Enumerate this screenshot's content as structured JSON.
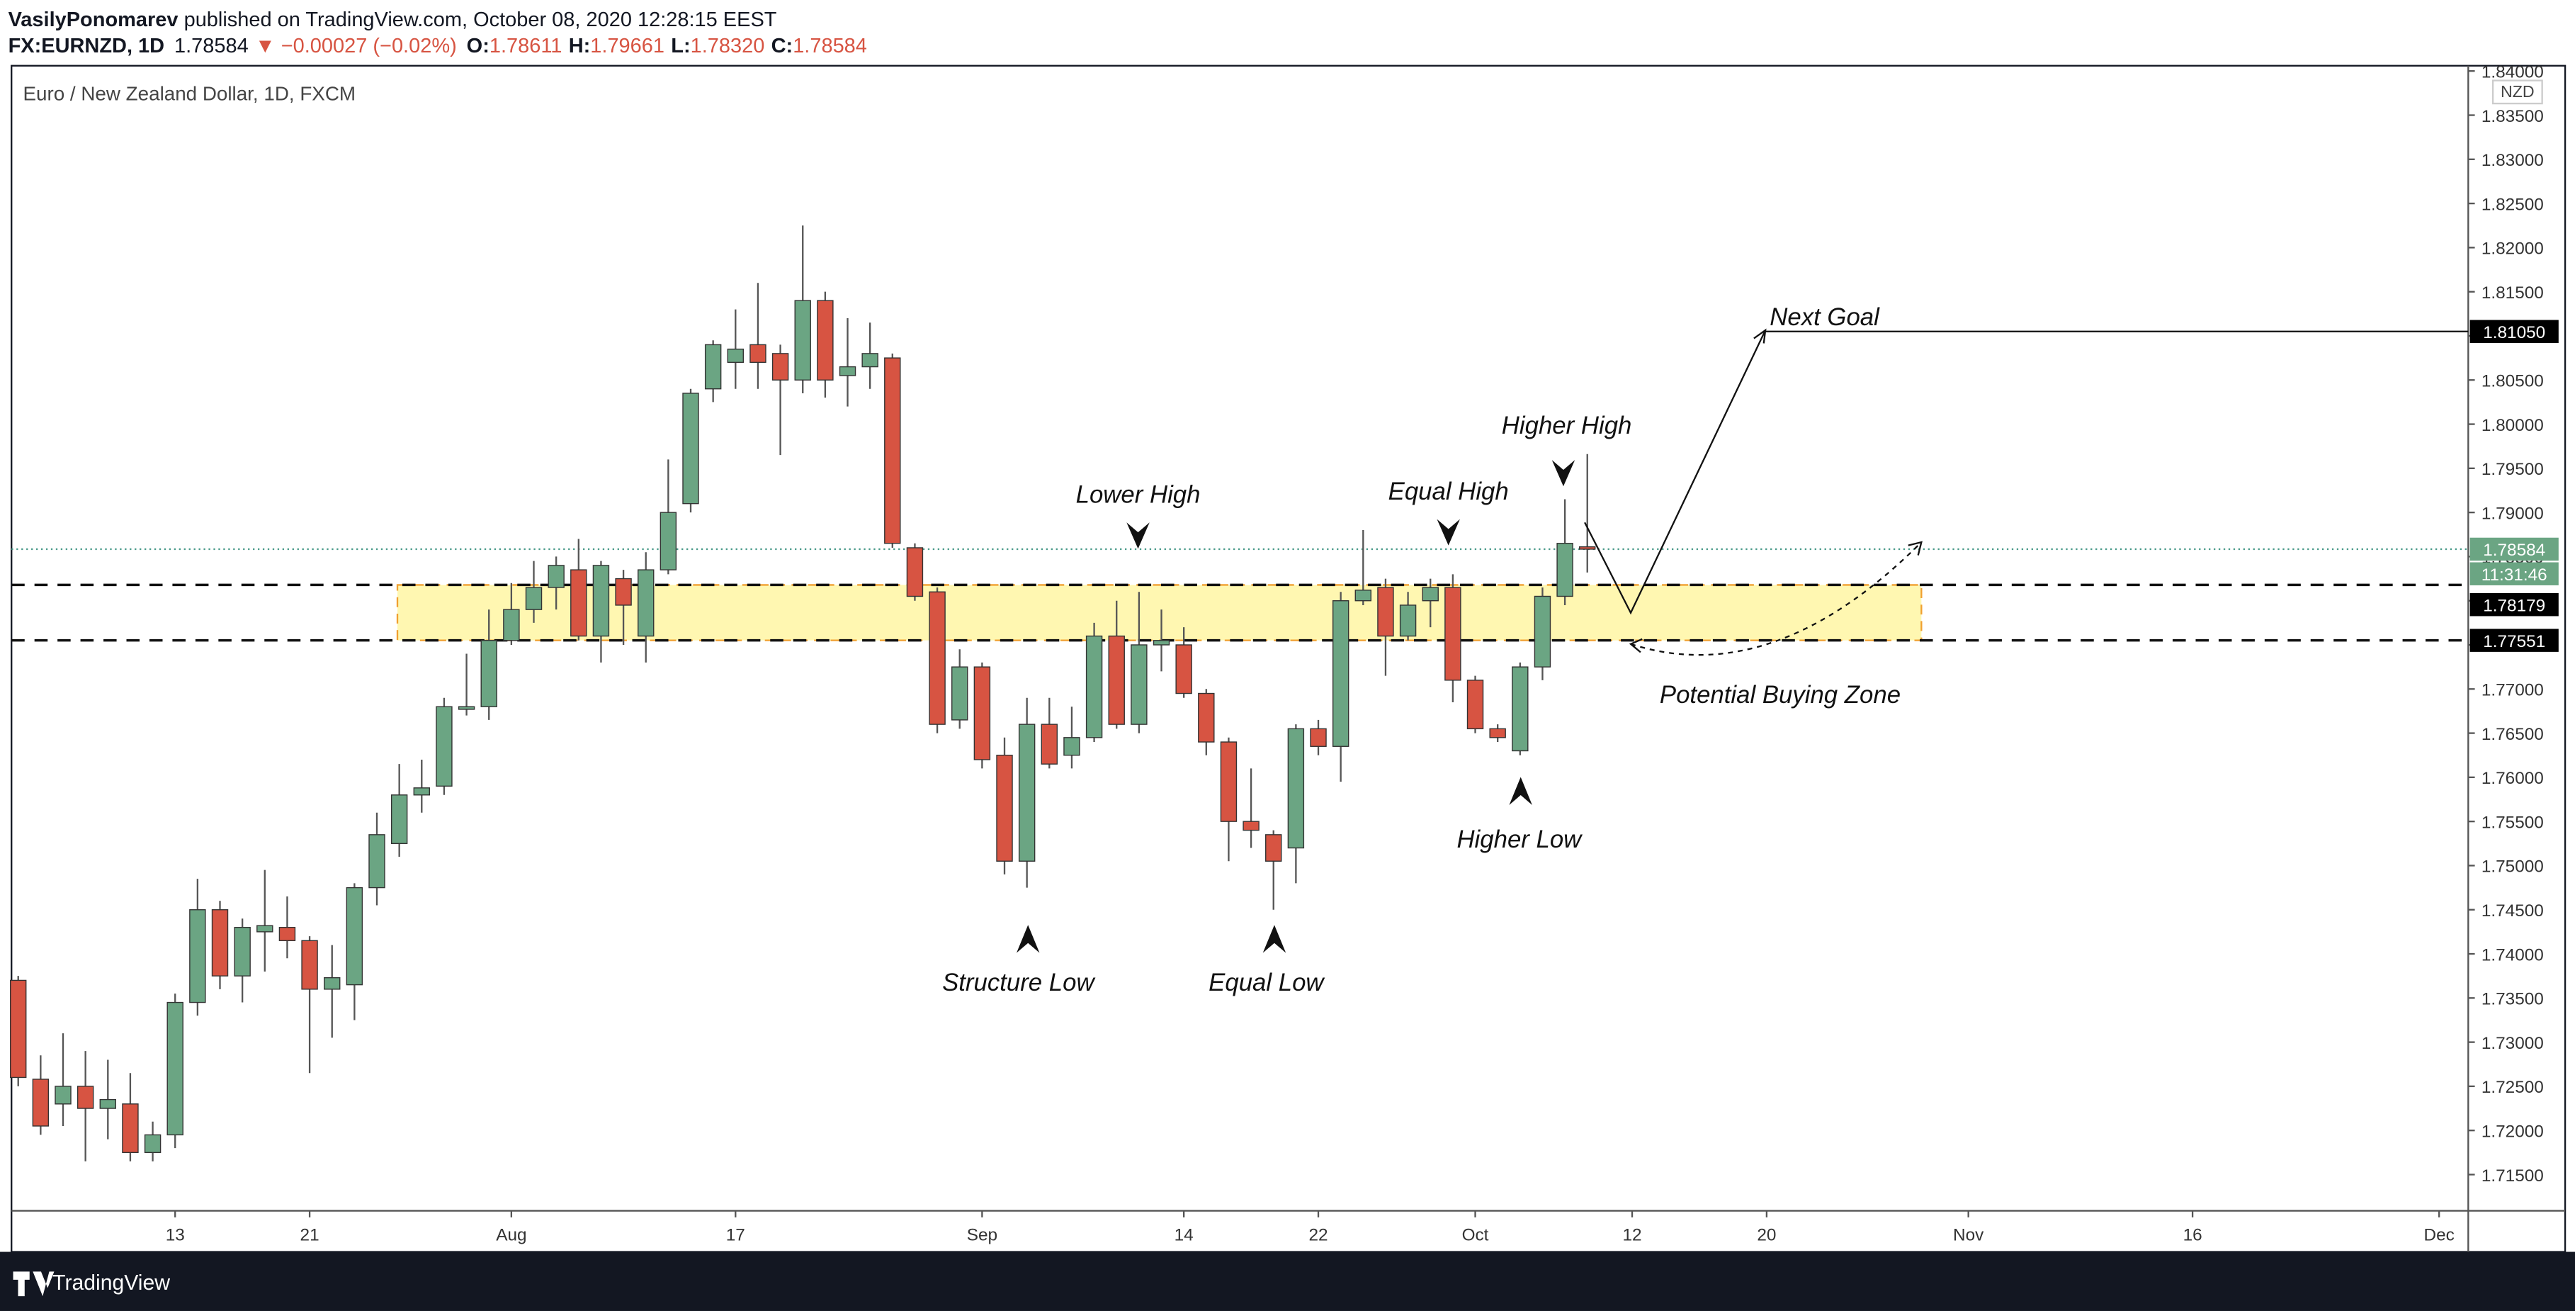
{
  "header": {
    "author": "VasilyPonomarev",
    "published": "published on TradingView.com, October 08, 2020 12:28:15 EEST",
    "symbol": "FX:EURNZD, 1D",
    "last": "1.78584",
    "change": "▼ −0.00027 (−0.02%)",
    "open_label": "O:",
    "open": "1.78611",
    "high_label": "H:",
    "high": "1.79661",
    "low_label": "L:",
    "low": "1.78320",
    "close_label": "C:",
    "close": "1.78584"
  },
  "footer": {
    "brand": "TradingView"
  },
  "chart_data": {
    "type": "candlestick",
    "title": "Euro / New Zealand Dollar, 1D, FXCM",
    "currency": "NZD",
    "up_color": "#6ba583",
    "down_color": "#d75442",
    "open": [
      1.737,
      1.7258,
      1.723,
      1.725,
      1.7225,
      1.723,
      1.7175,
      1.7195,
      1.7345,
      1.745,
      1.7375,
      1.7425,
      1.743,
      1.7415,
      1.736,
      1.7365,
      1.7475,
      1.7525,
      1.758,
      1.759,
      1.7677,
      1.768,
      1.7755,
      1.779,
      1.7815,
      1.7835,
      1.776,
      1.7825,
      1.776,
      1.7835,
      1.791,
      1.804,
      1.807,
      1.809,
      1.808,
      1.805,
      1.814,
      1.8055,
      1.8065,
      1.8075,
      1.786,
      1.781,
      1.7665,
      1.7725,
      1.7625,
      1.7505,
      1.766,
      1.7625,
      1.7645,
      1.776,
      1.766,
      1.775,
      1.775,
      1.7695,
      1.764,
      1.755,
      1.7535,
      1.752,
      1.7655,
      1.7635,
      1.78,
      1.7815,
      1.776,
      1.78,
      1.7815,
      1.771,
      1.7655,
      1.763,
      1.7725,
      1.7805,
      1.78611
    ],
    "high": [
      1.7375,
      1.7285,
      1.731,
      1.729,
      1.728,
      1.7265,
      1.721,
      1.7355,
      1.7485,
      1.746,
      1.744,
      1.7495,
      1.7465,
      1.742,
      1.741,
      1.748,
      1.756,
      1.7615,
      1.762,
      1.769,
      1.774,
      1.779,
      1.782,
      1.7845,
      1.785,
      1.787,
      1.7845,
      1.7835,
      1.7855,
      1.796,
      1.804,
      1.8095,
      1.813,
      1.816,
      1.809,
      1.8225,
      1.815,
      1.812,
      1.8115,
      1.808,
      1.7865,
      1.7815,
      1.7745,
      1.773,
      1.7645,
      1.769,
      1.769,
      1.768,
      1.7775,
      1.78,
      1.781,
      1.779,
      1.777,
      1.77,
      1.7645,
      1.761,
      1.754,
      1.766,
      1.7665,
      1.781,
      1.788,
      1.7825,
      1.781,
      1.7825,
      1.783,
      1.7715,
      1.766,
      1.773,
      1.7815,
      1.7915,
      1.79661
    ],
    "low": [
      1.725,
      1.7195,
      1.7205,
      1.7165,
      1.719,
      1.7165,
      1.7165,
      1.718,
      1.733,
      1.736,
      1.7345,
      1.738,
      1.7395,
      1.7265,
      1.7305,
      1.7325,
      1.7455,
      1.751,
      1.756,
      1.758,
      1.767,
      1.7665,
      1.775,
      1.7775,
      1.779,
      1.7755,
      1.773,
      1.775,
      1.773,
      1.783,
      1.79,
      1.8025,
      1.804,
      1.804,
      1.7965,
      1.8035,
      1.803,
      1.802,
      1.804,
      1.786,
      1.78,
      1.765,
      1.7655,
      1.761,
      1.749,
      1.7475,
      1.761,
      1.761,
      1.764,
      1.7655,
      1.765,
      1.772,
      1.769,
      1.7625,
      1.7505,
      1.752,
      1.745,
      1.748,
      1.7625,
      1.7595,
      1.7795,
      1.7715,
      1.7755,
      1.777,
      1.7685,
      1.765,
      1.764,
      1.7625,
      1.771,
      1.7795,
      1.7832
    ],
    "close": [
      1.726,
      1.7205,
      1.725,
      1.7225,
      1.7235,
      1.7175,
      1.7195,
      1.7345,
      1.745,
      1.7375,
      1.743,
      1.7432,
      1.7415,
      1.736,
      1.7373,
      1.7475,
      1.7535,
      1.758,
      1.7588,
      1.768,
      1.768,
      1.7755,
      1.779,
      1.7815,
      1.784,
      1.776,
      1.784,
      1.7795,
      1.7835,
      1.79,
      1.8035,
      1.809,
      1.8085,
      1.807,
      1.805,
      1.814,
      1.805,
      1.8065,
      1.808,
      1.7865,
      1.7805,
      1.766,
      1.7725,
      1.762,
      1.7505,
      1.766,
      1.7615,
      1.7645,
      1.776,
      1.766,
      1.775,
      1.7755,
      1.7695,
      1.764,
      1.755,
      1.754,
      1.7505,
      1.7655,
      1.7635,
      1.78,
      1.7812,
      1.776,
      1.7795,
      1.7815,
      1.771,
      1.7655,
      1.7645,
      1.7725,
      1.7805,
      1.7865,
      1.78584
    ],
    "xlim": [
      -0.3,
      109.3
    ],
    "xticks": [
      {
        "value": 7,
        "label": "13"
      },
      {
        "value": 13,
        "label": "21"
      },
      {
        "value": 22,
        "label": "Aug"
      },
      {
        "value": 32,
        "label": "17"
      },
      {
        "value": 43,
        "label": "Sep"
      },
      {
        "value": 52,
        "label": "14"
      },
      {
        "value": 58,
        "label": "22"
      },
      {
        "value": 65,
        "label": "Oct"
      },
      {
        "value": 72,
        "label": "12"
      },
      {
        "value": 78,
        "label": "20"
      },
      {
        "value": 87,
        "label": "Nov"
      },
      {
        "value": 97,
        "label": "16"
      },
      {
        "value": 108,
        "label": "Dec"
      }
    ],
    "ylim": [
      1.7109,
      1.8406
    ],
    "yticks": [
      {
        "value": 1.715,
        "label": "1.71500"
      },
      {
        "value": 1.72,
        "label": "1.72000"
      },
      {
        "value": 1.725,
        "label": "1.72500"
      },
      {
        "value": 1.73,
        "label": "1.73000"
      },
      {
        "value": 1.735,
        "label": "1.73500"
      },
      {
        "value": 1.74,
        "label": "1.74000"
      },
      {
        "value": 1.745,
        "label": "1.74500"
      },
      {
        "value": 1.75,
        "label": "1.75000"
      },
      {
        "value": 1.755,
        "label": "1.75500"
      },
      {
        "value": 1.76,
        "label": "1.76000"
      },
      {
        "value": 1.765,
        "label": "1.76500"
      },
      {
        "value": 1.77,
        "label": "1.77000"
      },
      {
        "value": 1.775,
        "label": "1.77500"
      },
      {
        "value": 1.78,
        "label": "1.78000"
      },
      {
        "value": 1.785,
        "label": "1.78500"
      },
      {
        "value": 1.79,
        "label": "1.79000"
      },
      {
        "value": 1.795,
        "label": "1.79500"
      },
      {
        "value": 1.8,
        "label": "1.80000"
      },
      {
        "value": 1.805,
        "label": "1.80500"
      },
      {
        "value": 1.81,
        "label": "1.81000"
      },
      {
        "value": 1.815,
        "label": "1.81500"
      },
      {
        "value": 1.82,
        "label": "1.82000"
      },
      {
        "value": 1.825,
        "label": "1.82500"
      },
      {
        "value": 1.83,
        "label": "1.83000"
      },
      {
        "value": 1.835,
        "label": "1.83500"
      },
      {
        "value": 1.84,
        "label": "1.84000"
      }
    ],
    "last_price": 1.78584,
    "countdown": "11:31:46",
    "next_goal": {
      "value": 1.8105,
      "label": "1.81050",
      "text": "Next Goal"
    },
    "buying_zone": {
      "top": 1.78179,
      "bottom": 1.77551,
      "text": "Potential Buying Zone"
    },
    "annotations": [
      "Lower High",
      "Equal High",
      "Higher High",
      "Structure Low",
      "Equal Low",
      "Higher Low"
    ]
  }
}
